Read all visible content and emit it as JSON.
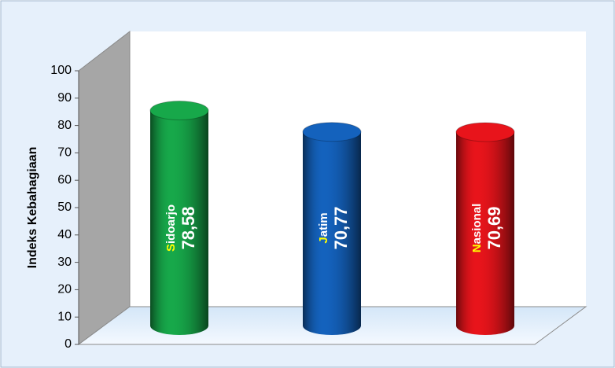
{
  "chart_data": {
    "type": "bar",
    "y_label": "Indeks Kebahagiaan",
    "categories": [
      "Sidoarjo",
      "Jatim",
      "Nasional"
    ],
    "values": [
      78.58,
      70.77,
      70.69
    ],
    "value_labels": [
      "78,58",
      "70,77",
      "70,69"
    ],
    "colors": [
      "#17a84a",
      "#1462bd",
      "#e8141b"
    ],
    "ylim": [
      0,
      100
    ],
    "yticks": [
      0,
      10,
      20,
      30,
      40,
      50,
      60,
      70,
      80,
      90,
      100
    ]
  }
}
